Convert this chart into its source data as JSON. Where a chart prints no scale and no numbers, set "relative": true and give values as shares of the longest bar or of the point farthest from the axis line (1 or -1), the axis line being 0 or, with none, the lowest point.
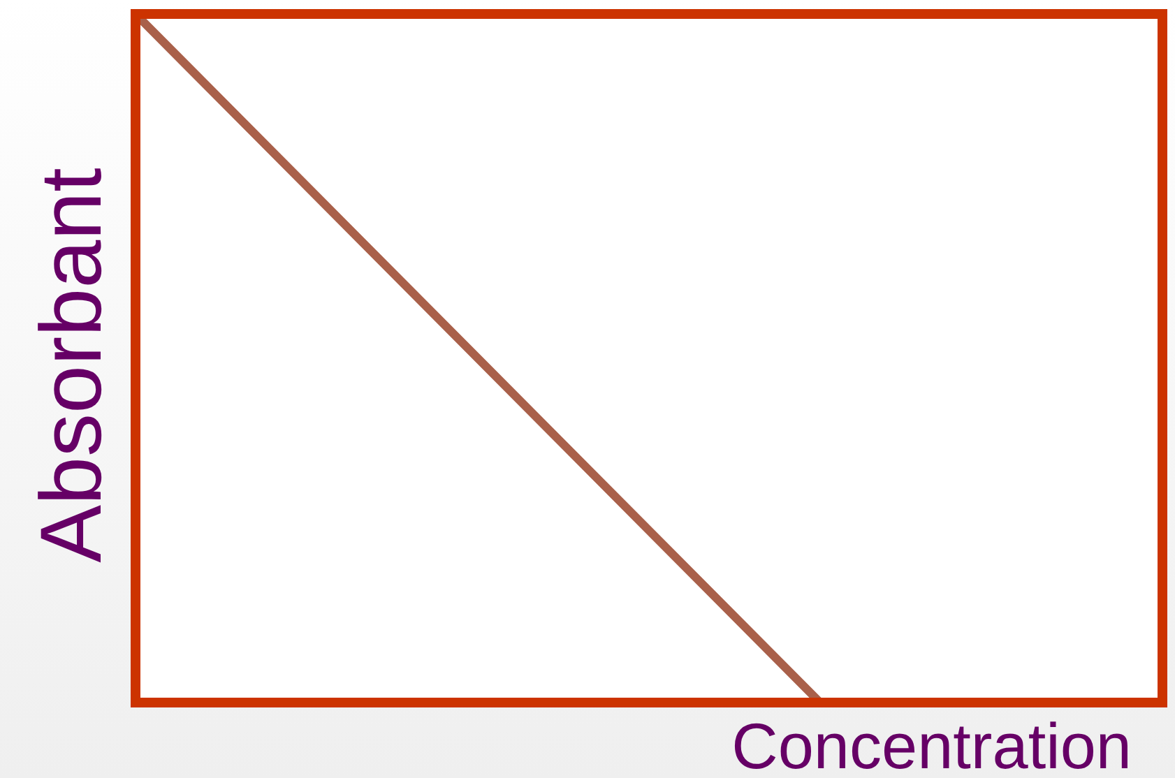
{
  "chart_data": {
    "type": "line",
    "relative": true,
    "xlabel": "Concentration",
    "ylabel": "Absorbant",
    "categories": [
      null,
      null,
      null,
      null
    ],
    "series": [
      {
        "color": "#a9604a",
        "values": [
          1,
          0.5,
          0,
          null
        ]
      }
    ]
  }
}
